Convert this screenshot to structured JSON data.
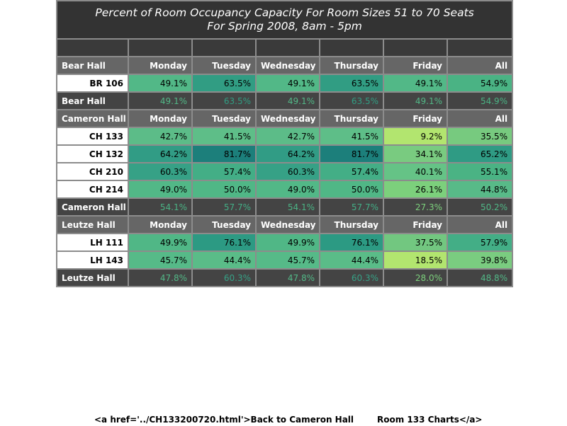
{
  "chart_data": {
    "type": "table",
    "title": "Percent of Room Occupancy Capacity For Room Sizes 51 to 70 Seats",
    "subtitle": "For Spring 2008, 8am - 5pm",
    "columns": [
      "Monday",
      "Tuesday",
      "Wednesday",
      "Thursday",
      "Friday",
      "All"
    ],
    "groups": [
      {
        "hall": "Bear Hall",
        "rows": [
          {
            "room": "BR 106",
            "values": [
              "49.1%",
              "63.5%",
              "49.1%",
              "63.5%",
              "49.1%",
              "54.9%"
            ],
            "colors": [
              "#52b887",
              "#319d83",
              "#52b887",
              "#319d83",
              "#52b887",
              "#4ab384"
            ]
          }
        ],
        "summary": {
          "label": "Bear Hall",
          "values": [
            "49.1%",
            "63.5%",
            "49.1%",
            "63.5%",
            "49.1%",
            "54.9%"
          ],
          "colors": [
            "#52b887",
            "#319d83",
            "#52b887",
            "#319d83",
            "#52b887",
            "#4ab384"
          ]
        }
      },
      {
        "hall": "Cameron Hall",
        "rows": [
          {
            "room": "CH 133",
            "values": [
              "42.7%",
              "41.5%",
              "42.7%",
              "41.5%",
              "9.2%",
              "35.5%"
            ],
            "colors": [
              "#5cbc88",
              "#5ebe88",
              "#5cbc88",
              "#5ebe88",
              "#b2e56f",
              "#77ca7f"
            ]
          },
          {
            "room": "CH 132",
            "values": [
              "64.2%",
              "81.7%",
              "64.2%",
              "81.7%",
              "34.1%",
              "65.2%"
            ],
            "colors": [
              "#319c85",
              "#1c7f7b",
              "#319c85",
              "#1c7f7b",
              "#79cb80",
              "#2f9b84"
            ]
          },
          {
            "room": "CH 210",
            "values": [
              "60.3%",
              "57.4%",
              "60.3%",
              "57.4%",
              "40.1%",
              "55.1%"
            ],
            "colors": [
              "#36a186",
              "#43ae86",
              "#36a186",
              "#43ae86",
              "#65c386",
              "#4ab384"
            ]
          },
          {
            "room": "CH 214",
            "values": [
              "49.0%",
              "50.0%",
              "49.0%",
              "50.0%",
              "26.1%",
              "44.8%"
            ],
            "colors": [
              "#52b887",
              "#50b786",
              "#52b887",
              "#50b786",
              "#7cd07c",
              "#58ba88"
            ]
          }
        ],
        "summary": {
          "label": "Cameron Hall",
          "values": [
            "54.1%",
            "57.7%",
            "54.1%",
            "57.7%",
            "27.3%",
            "50.2%"
          ],
          "colors": [
            "#4ab384",
            "#43ae86",
            "#4ab384",
            "#43ae86",
            "#7cd07c",
            "#50b786"
          ]
        }
      },
      {
        "hall": "Leutze Hall",
        "rows": [
          {
            "room": "LH 111",
            "values": [
              "49.9%",
              "76.1%",
              "49.9%",
              "76.1%",
              "37.5%",
              "57.9%"
            ],
            "colors": [
              "#50b786",
              "#2c9a83",
              "#50b786",
              "#2c9a83",
              "#72c780",
              "#43ae86"
            ]
          },
          {
            "room": "LH 143",
            "values": [
              "45.7%",
              "44.4%",
              "45.7%",
              "44.4%",
              "18.5%",
              "39.8%"
            ],
            "colors": [
              "#56ba88",
              "#5abc88",
              "#56ba88",
              "#5abc88",
              "#b2e56f",
              "#7acc80"
            ]
          }
        ],
        "summary": {
          "label": "Leutze Hall",
          "values": [
            "47.8%",
            "60.3%",
            "47.8%",
            "60.3%",
            "28.0%",
            "48.8%"
          ],
          "colors": [
            "#52b887",
            "#36a186",
            "#52b887",
            "#36a186",
            "#7cd07c",
            "#52b887"
          ]
        }
      }
    ]
  },
  "footer": {
    "left": "<a href='../CH133200720.html'>Back to Cameron Hall",
    "right": "Room 133 Charts</a>"
  }
}
